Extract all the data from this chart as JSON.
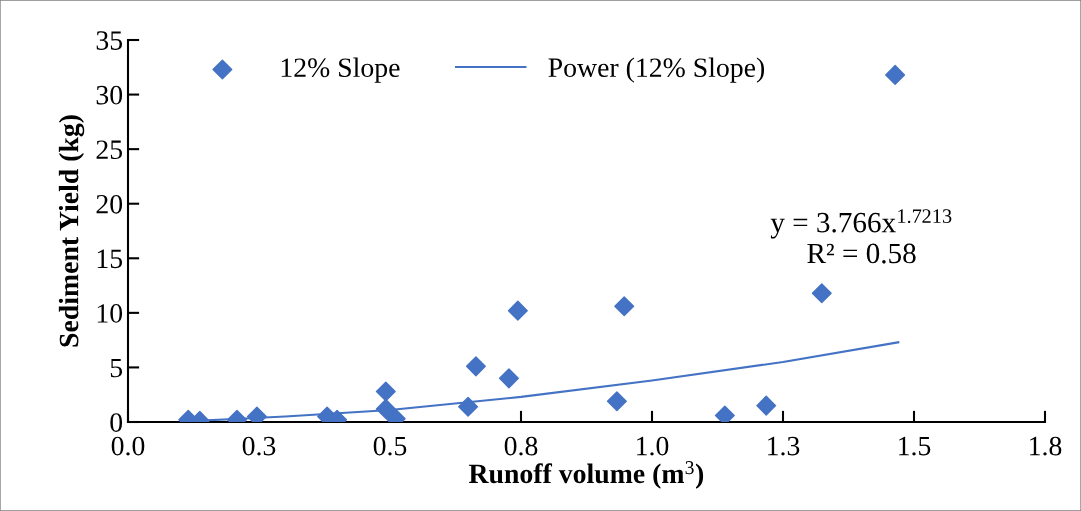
{
  "chart_data": {
    "type": "scatter",
    "xlabel": "Runoff volume (m$^{3}$)",
    "ylabel": "Sediment Yield (kg)",
    "series": [
      {
        "name": "12% Slope",
        "color": "#4472c4",
        "marker": "diamond",
        "x": [
          0.115,
          0.137,
          0.208,
          0.246,
          0.38,
          0.399,
          0.492,
          0.492,
          0.511,
          0.649,
          0.664,
          0.727,
          0.744,
          0.933,
          0.947,
          1.139,
          1.218,
          1.324,
          1.464
        ],
        "values": [
          0.2,
          0.1,
          0.2,
          0.5,
          0.5,
          0.2,
          2.8,
          1.2,
          0.3,
          1.4,
          5.1,
          4.0,
          10.2,
          1.9,
          10.6,
          0.6,
          1.5,
          11.8,
          31.8
        ]
      },
      {
        "name": "Power (12% Slope)",
        "type": "line",
        "color": "#4472c4",
        "line_style": "solid",
        "x": [
          0.13,
          0.3,
          0.5,
          0.75,
          1.0,
          1.25,
          1.47
        ],
        "values": [
          0.1,
          0.5,
          1.1,
          2.3,
          3.8,
          5.5,
          7.3
        ]
      }
    ],
    "annotations": [
      "y = 3.766x$^{1.7213}$\nR² = 0.58"
    ],
    "xlim": [
      0,
      1.75
    ],
    "xticks": [
      {
        "value": 0,
        "label": "0.0"
      },
      {
        "value": 0.25,
        "label": "0.3"
      },
      {
        "value": 0.5,
        "label": "0.5"
      },
      {
        "value": 0.75,
        "label": "0.8"
      },
      {
        "value": 1.0,
        "label": "1.0"
      },
      {
        "value": 1.25,
        "label": "1.3"
      },
      {
        "value": 1.5,
        "label": "1.5"
      },
      {
        "value": 1.75,
        "label": "1.8"
      }
    ],
    "ylim": [
      0,
      35
    ],
    "yticks": [
      0,
      5,
      10,
      15,
      20,
      25,
      30,
      35
    ],
    "grid": false,
    "legend": "top"
  }
}
